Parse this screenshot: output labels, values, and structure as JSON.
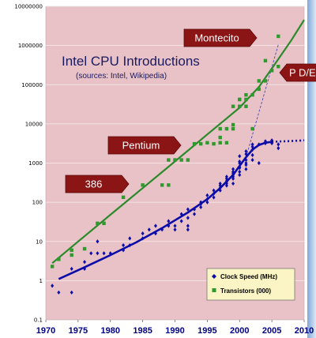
{
  "chart_data": {
    "type": "scatter",
    "title": "Intel CPU Introductions",
    "subtitle": "(sources: Intel, Wikipedia)",
    "xlabel": "",
    "ylabel": "",
    "x_scale": "linear",
    "y_scale": "log",
    "xlim": [
      1970,
      2010
    ],
    "ylim": [
      0.1,
      10000000
    ],
    "x_ticks": [
      "1970",
      "1975",
      "1980",
      "1985",
      "1990",
      "1995",
      "2000",
      "2005",
      "2010"
    ],
    "y_ticks": [
      "0.1",
      "1",
      "10",
      "100",
      "1000",
      "10000",
      "100000",
      "1000000",
      "10000000"
    ],
    "grid": true,
    "legend_position": "bottom-right",
    "colors": {
      "background": "#e8c2c6",
      "clock": "#0c0ca8",
      "transistors": "#2e9a2e",
      "callout": "#8b1414",
      "legend_bg": "#fbf4c4"
    },
    "series": [
      {
        "name": "Clock Speed (MHz)",
        "marker": "diamond",
        "points": [
          [
            1971,
            0.74
          ],
          [
            1972,
            0.5
          ],
          [
            1974,
            0.5
          ],
          [
            1974,
            2
          ],
          [
            1976,
            2
          ],
          [
            1976,
            3
          ],
          [
            1977,
            5
          ],
          [
            1978,
            5
          ],
          [
            1978,
            10
          ],
          [
            1979,
            5
          ],
          [
            1980,
            5
          ],
          [
            1982,
            6
          ],
          [
            1982,
            8
          ],
          [
            1983,
            8
          ],
          [
            1983,
            12
          ],
          [
            1985,
            12
          ],
          [
            1985,
            16
          ],
          [
            1986,
            20
          ],
          [
            1987,
            16
          ],
          [
            1987,
            25
          ],
          [
            1988,
            20
          ],
          [
            1989,
            25
          ],
          [
            1989,
            33
          ],
          [
            1990,
            20
          ],
          [
            1990,
            25
          ],
          [
            1991,
            33
          ],
          [
            1991,
            50
          ],
          [
            1992,
            20
          ],
          [
            1992,
            25
          ],
          [
            1992,
            40
          ],
          [
            1992,
            66
          ],
          [
            1993,
            66
          ],
          [
            1993,
            50
          ],
          [
            1994,
            75
          ],
          [
            1994,
            90
          ],
          [
            1994,
            100
          ],
          [
            1995,
            100
          ],
          [
            1995,
            120
          ],
          [
            1995,
            150
          ],
          [
            1996,
            133
          ],
          [
            1996,
            166
          ],
          [
            1996,
            200
          ],
          [
            1997,
            200
          ],
          [
            1997,
            233
          ],
          [
            1997,
            266
          ],
          [
            1997,
            300
          ],
          [
            1998,
            266
          ],
          [
            1998,
            300
          ],
          [
            1998,
            333
          ],
          [
            1998,
            350
          ],
          [
            1998,
            400
          ],
          [
            1998,
            450
          ],
          [
            1999,
            300
          ],
          [
            1999,
            400
          ],
          [
            1999,
            450
          ],
          [
            1999,
            500
          ],
          [
            1999,
            550
          ],
          [
            1999,
            600
          ],
          [
            1999,
            700
          ],
          [
            2000,
            500
          ],
          [
            2000,
            600
          ],
          [
            2000,
            750
          ],
          [
            2000,
            800
          ],
          [
            2000,
            1000
          ],
          [
            2000,
            1100
          ],
          [
            2000,
            1500
          ],
          [
            2001,
            700
          ],
          [
            2001,
            900
          ],
          [
            2001,
            1000
          ],
          [
            2001,
            1200
          ],
          [
            2001,
            1700
          ],
          [
            2001,
            2000
          ],
          [
            2002,
            1200
          ],
          [
            2002,
            1600
          ],
          [
            2002,
            2200
          ],
          [
            2002,
            2600
          ],
          [
            2002,
            3000
          ],
          [
            2003,
            1000
          ],
          [
            2003,
            3000
          ],
          [
            2004,
            3200
          ],
          [
            2004,
            3600
          ],
          [
            2005,
            3200
          ],
          [
            2005,
            3800
          ],
          [
            2006,
            3000
          ],
          [
            2006,
            2400
          ]
        ],
        "trend_solid": [
          [
            1972,
            1.1
          ],
          [
            1976,
            2.2
          ],
          [
            1980,
            4.5
          ],
          [
            1984,
            9.5
          ],
          [
            1988,
            22
          ],
          [
            1992,
            55
          ],
          [
            1995,
            120
          ],
          [
            1997,
            230
          ],
          [
            1999,
            500
          ],
          [
            2000,
            850
          ],
          [
            2001,
            1400
          ],
          [
            2002,
            2200
          ],
          [
            2003,
            2900
          ],
          [
            2004,
            3300
          ],
          [
            2005,
            3500
          ]
        ],
        "trend_dotted": [
          [
            2005,
            3500
          ],
          [
            2006,
            3550
          ],
          [
            2008,
            3650
          ],
          [
            2010,
            3800
          ]
        ]
      },
      {
        "name": "Transistors (000)",
        "marker": "square",
        "points": [
          [
            1971,
            2.3
          ],
          [
            1972,
            3.5
          ],
          [
            1974,
            4.5
          ],
          [
            1974,
            6
          ],
          [
            1976,
            6.5
          ],
          [
            1978,
            29
          ],
          [
            1979,
            29
          ],
          [
            1982,
            134
          ],
          [
            1985,
            275
          ],
          [
            1988,
            275
          ],
          [
            1989,
            275
          ],
          [
            1989,
            1200
          ],
          [
            1990,
            1200
          ],
          [
            1991,
            1200
          ],
          [
            1992,
            1200
          ],
          [
            1993,
            3100
          ],
          [
            1994,
            3100
          ],
          [
            1995,
            3300
          ],
          [
            1996,
            3100
          ],
          [
            1997,
            3300
          ],
          [
            1997,
            4500
          ],
          [
            1997,
            7500
          ],
          [
            1998,
            7500
          ],
          [
            1998,
            3300
          ],
          [
            1999,
            7500
          ],
          [
            1999,
            9500
          ],
          [
            1999,
            28000
          ],
          [
            2000,
            28000
          ],
          [
            2000,
            42000
          ],
          [
            2000,
            42000
          ],
          [
            2001,
            42000
          ],
          [
            2001,
            55000
          ],
          [
            2001,
            28000
          ],
          [
            2002,
            55000
          ],
          [
            2002,
            7500
          ],
          [
            2003,
            125000
          ],
          [
            2003,
            77000
          ],
          [
            2004,
            125000
          ],
          [
            2004,
            410000
          ],
          [
            2005,
            230000
          ],
          [
            2006,
            291000
          ],
          [
            2006,
            1720000
          ]
        ],
        "trend": [
          [
            1971,
            2.8
          ],
          [
            1975,
            10
          ],
          [
            1980,
            48
          ],
          [
            1985,
            230
          ],
          [
            1990,
            1100
          ],
          [
            1995,
            5400
          ],
          [
            2000,
            26000
          ],
          [
            2003,
            88000
          ],
          [
            2005,
            260000
          ],
          [
            2008,
            1350000
          ],
          [
            2010,
            4500000
          ]
        ],
        "dashed_line": [
          [
            2001,
            1400
          ],
          [
            2006,
            1050000
          ]
        ]
      }
    ],
    "annotations": [
      {
        "text": "Montecito",
        "x": 2006,
        "y": 1720000
      },
      {
        "text": "P D/EE",
        "x": 2006,
        "y": 291000
      },
      {
        "text": "Pentium",
        "x": 1993,
        "y": 3100
      },
      {
        "text": "386",
        "x": 1985,
        "y": 275
      }
    ]
  }
}
